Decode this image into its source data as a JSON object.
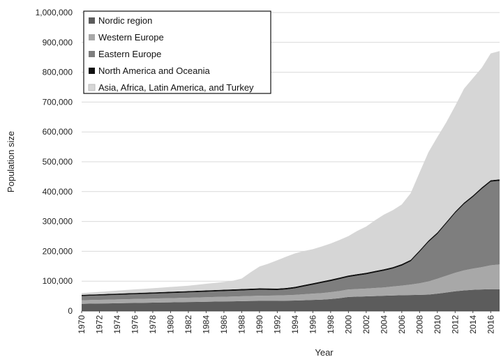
{
  "chart_data": {
    "type": "area",
    "stacked": true,
    "xlabel": "Year",
    "ylabel": "Population size",
    "ylim": [
      0,
      1000000
    ],
    "y_ticks": [
      "0",
      "100,000",
      "200,000",
      "300,000",
      "400,000",
      "500,000",
      "600,000",
      "700,000",
      "800,000",
      "900,000",
      "1,000,000"
    ],
    "x_tick_labels": [
      "1970",
      "1972",
      "1974",
      "1976",
      "1978",
      "1980",
      "1982",
      "1984",
      "1986",
      "1988",
      "1990",
      "1992",
      "1994",
      "1996",
      "1998",
      "2000",
      "2002",
      "2004",
      "2006",
      "2008",
      "2010",
      "2012",
      "2014",
      "2016"
    ],
    "x": [
      1970,
      1971,
      1972,
      1973,
      1974,
      1975,
      1976,
      1977,
      1978,
      1979,
      1980,
      1981,
      1982,
      1983,
      1984,
      1985,
      1986,
      1987,
      1988,
      1989,
      1990,
      1991,
      1992,
      1993,
      1994,
      1995,
      1996,
      1997,
      1998,
      1999,
      2000,
      2001,
      2002,
      2003,
      2004,
      2005,
      2006,
      2007,
      2008,
      2009,
      2010,
      2011,
      2012,
      2013,
      2014,
      2015,
      2016,
      2017
    ],
    "grid": "horizontal",
    "legend_position": "top-left",
    "series": [
      {
        "name": "Nordic region",
        "color": "#5c5c5c",
        "values": [
          24000,
          24500,
          25000,
          25500,
          26000,
          26500,
          27000,
          27500,
          28000,
          28500,
          29000,
          29500,
          30000,
          30500,
          31000,
          31500,
          32000,
          32500,
          33000,
          33500,
          34000,
          34000,
          34000,
          34500,
          35000,
          36000,
          37000,
          38000,
          40000,
          43000,
          47000,
          48000,
          49000,
          50000,
          51000,
          52000,
          53000,
          53500,
          54000,
          55000,
          58000,
          62000,
          66000,
          69000,
          71000,
          72000,
          73000,
          73000
        ]
      },
      {
        "name": "Western Europe",
        "color": "#a8a8a8",
        "values": [
          12000,
          12200,
          12400,
          12600,
          12800,
          13000,
          13200,
          13400,
          13600,
          13800,
          14000,
          14200,
          14500,
          14800,
          15100,
          15400,
          15700,
          16000,
          16300,
          16600,
          17000,
          17500,
          18000,
          18500,
          19000,
          20000,
          21000,
          22000,
          23000,
          24000,
          25000,
          25500,
          26000,
          27000,
          28000,
          30000,
          32000,
          35000,
          39000,
          44000,
          50000,
          56000,
          62000,
          67000,
          71000,
          75000,
          80000,
          83000
        ]
      },
      {
        "name": "Eastern Europe",
        "color": "#7e7e7e",
        "values": [
          14000,
          14300,
          14600,
          14900,
          15200,
          15500,
          15800,
          16000,
          16300,
          16600,
          17000,
          17300,
          17600,
          17900,
          18200,
          18500,
          18800,
          19100,
          19400,
          19700,
          20000,
          19000,
          18000,
          19000,
          22000,
          26000,
          30000,
          34000,
          37000,
          40000,
          42000,
          45000,
          48000,
          52000,
          56000,
          60000,
          67000,
          78000,
          105000,
          132000,
          150000,
          175000,
          200000,
          222000,
          240000,
          262000,
          280000,
          280000
        ]
      },
      {
        "name": "North America and Oceania",
        "color": "#111111",
        "values": [
          4000,
          4050,
          4100,
          4150,
          4200,
          4250,
          4300,
          4350,
          4400,
          4450,
          4500,
          4550,
          4600,
          4650,
          4700,
          4750,
          4800,
          4850,
          4900,
          4950,
          5000,
          5000,
          5000,
          5000,
          5000,
          5000,
          5000,
          5000,
          5000,
          5000,
          5000,
          5000,
          5000,
          5000,
          5000,
          5000,
          5000,
          5000,
          5000,
          5000,
          5000,
          5000,
          5000,
          5000,
          5000,
          5000,
          5000,
          5000
        ]
      },
      {
        "name": "Asia, Africa,  Latin America, and Turkey",
        "color": "#d6d6d6",
        "values": [
          6000,
          7000,
          8000,
          9000,
          10000,
          11000,
          12000,
          13000,
          14000,
          15000,
          16000,
          17000,
          18000,
          20000,
          22000,
          24000,
          26000,
          29000,
          35000,
          55000,
          73000,
          83000,
          95000,
          105000,
          112000,
          114000,
          114000,
          117000,
          121000,
          126000,
          132000,
          145000,
          155000,
          170000,
          183000,
          191000,
          200000,
          223000,
          261000,
          296000,
          320000,
          334000,
          354000,
          382000,
          393000,
          401000,
          425000,
          430000
        ]
      }
    ]
  }
}
